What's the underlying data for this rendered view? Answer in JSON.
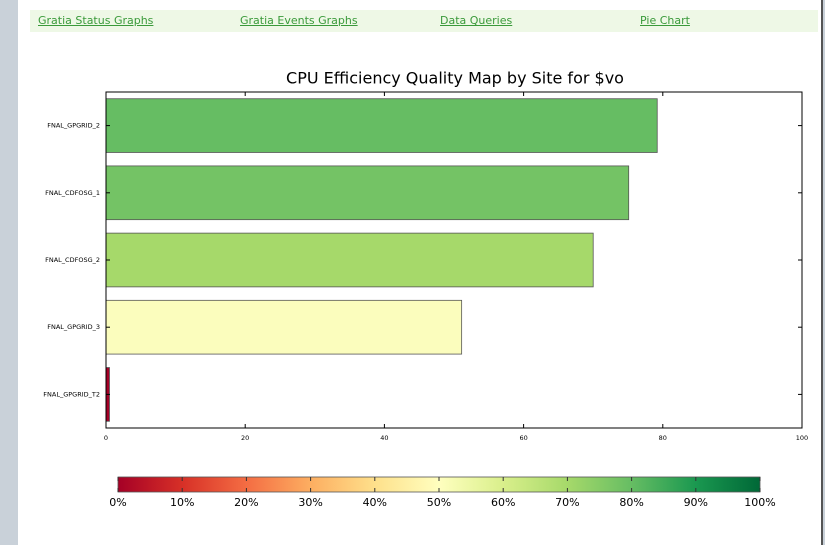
{
  "nav": [
    "Gratia Status Graphs",
    "Gratia Events Graphs",
    "Data Queries",
    "Pie Chart"
  ],
  "chart_data": {
    "type": "bar",
    "orientation": "horizontal",
    "title": "CPU Efficiency Quality Map by Site for $vo",
    "categories": [
      "FNAL_GPGRID_2",
      "FNAL_CDFOSG_1",
      "FNAL_CDFOSG_2",
      "FNAL_GPGRID_3",
      "FNAL_GPGRID_T2"
    ],
    "values": [
      79.2,
      75.1,
      70,
      51.1,
      0.5
    ],
    "colors": [
      "#66bd63",
      "#74c365",
      "#a6d96a",
      "#fbfdbd",
      "#a50026"
    ],
    "xlim": [
      0,
      100
    ],
    "xticks": [
      0,
      20,
      40,
      60,
      80,
      100
    ],
    "colorbar": {
      "ticks": [
        {
          "value": 0,
          "label": "0%"
        },
        {
          "value": 10,
          "label": "10%"
        },
        {
          "value": 20,
          "label": "20%"
        },
        {
          "value": 30,
          "label": "30%"
        },
        {
          "value": 40,
          "label": "40%"
        },
        {
          "value": 50,
          "label": "50%"
        },
        {
          "value": 60,
          "label": "60%"
        },
        {
          "value": 70,
          "label": "70%"
        },
        {
          "value": 80,
          "label": "80%"
        },
        {
          "value": 90,
          "label": "90%"
        },
        {
          "value": 100,
          "label": "100%"
        }
      ],
      "lim": [
        0,
        100
      ]
    }
  }
}
